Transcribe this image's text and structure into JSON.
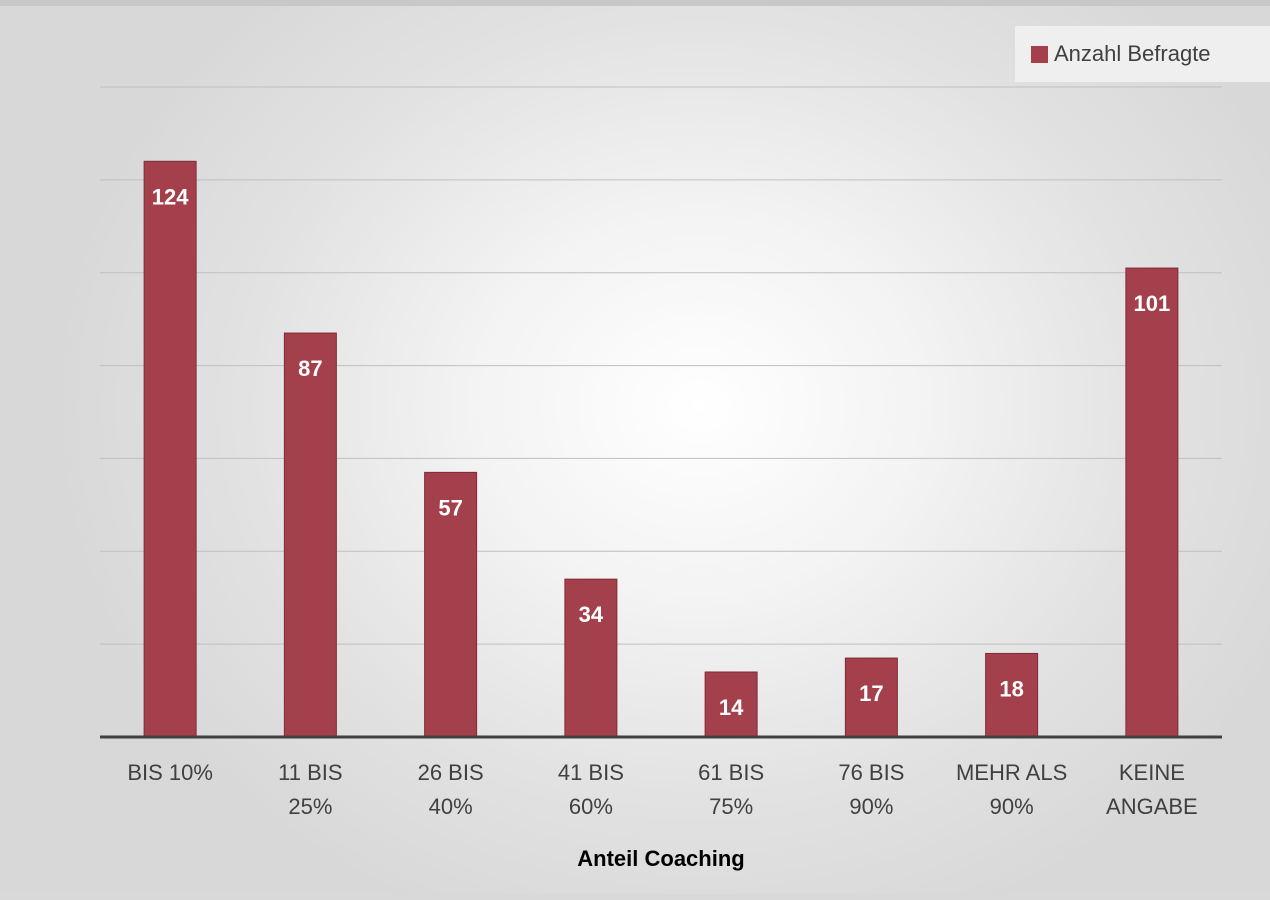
{
  "chart_data": {
    "type": "bar",
    "categories": [
      [
        "BIS 10%"
      ],
      [
        "11 BIS",
        "25%"
      ],
      [
        "26 BIS",
        "40%"
      ],
      [
        "41 BIS",
        "60%"
      ],
      [
        "61 BIS",
        "75%"
      ],
      [
        "76 BIS",
        "90%"
      ],
      [
        "MEHR ALS",
        "90%"
      ],
      [
        "KEINE",
        "ANGABE"
      ]
    ],
    "series": [
      {
        "name": "Anzahl Befragte",
        "values": [
          124,
          87,
          57,
          34,
          14,
          17,
          18,
          101
        ]
      }
    ],
    "xlabel": "Anteil Coaching",
    "ylabel": "",
    "ylim": [
      0,
      140
    ],
    "grid": true,
    "legend": "top-right",
    "data_labels": "inside-end",
    "colors": {
      "bar": "#a3404b",
      "bar_border": "#7f2c36",
      "label_text": "#ffffff",
      "axis": "#404040",
      "gridline": "#bfbfbf"
    }
  }
}
